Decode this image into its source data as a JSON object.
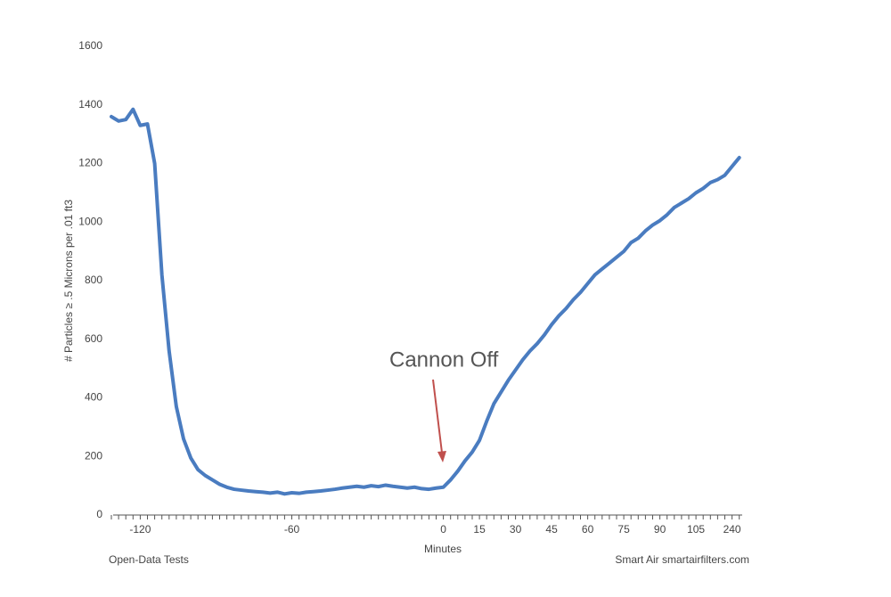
{
  "chart_data": {
    "type": "line",
    "x_label": "Minutes",
    "y_label": "# Particles ≥ .5 Microns per .01 ft3",
    "annotation": "Cannon Off",
    "footer_left": "Open-Data Tests",
    "footer_right": "Smart Air smartairfilters.com",
    "categories": [
      null,
      null,
      null,
      null,
      "-120",
      null,
      null,
      null,
      null,
      null,
      null,
      null,
      null,
      null,
      null,
      null,
      null,
      null,
      null,
      null,
      null,
      null,
      null,
      null,
      null,
      "-60",
      null,
      null,
      null,
      null,
      null,
      null,
      null,
      null,
      null,
      null,
      null,
      null,
      null,
      null,
      null,
      null,
      null,
      null,
      null,
      null,
      "0",
      null,
      null,
      null,
      null,
      "15",
      null,
      null,
      null,
      null,
      "30",
      null,
      null,
      null,
      null,
      "45",
      null,
      null,
      null,
      null,
      "60",
      null,
      null,
      null,
      null,
      "75",
      null,
      null,
      null,
      null,
      "90",
      null,
      null,
      null,
      null,
      "105",
      null,
      null,
      null,
      null,
      "240",
      null
    ],
    "series": [
      {
        "color": "#4a7cc0",
        "values": [
          1360,
          1345,
          1350,
          1385,
          1330,
          1335,
          1200,
          820,
          560,
          370,
          260,
          195,
          155,
          135,
          120,
          105,
          95,
          88,
          85,
          82,
          80,
          78,
          75,
          78,
          72,
          76,
          74,
          78,
          80,
          82,
          85,
          88,
          92,
          95,
          98,
          95,
          100,
          97,
          102,
          98,
          95,
          92,
          95,
          90,
          88,
          92,
          95,
          120,
          150,
          185,
          215,
          255,
          320,
          380,
          420,
          460,
          495,
          530,
          560,
          585,
          615,
          650,
          680,
          705,
          735,
          760,
          790,
          820,
          840,
          860,
          880,
          900,
          930,
          945,
          970,
          990,
          1005,
          1025,
          1050,
          1065,
          1080,
          1100,
          1115,
          1135,
          1145,
          1160,
          1190,
          1220
        ]
      }
    ],
    "ylim": [
      0,
      1600
    ],
    "yticks": [
      0,
      200,
      400,
      600,
      800,
      1000,
      1200,
      1400,
      1600
    ],
    "grid": false
  }
}
